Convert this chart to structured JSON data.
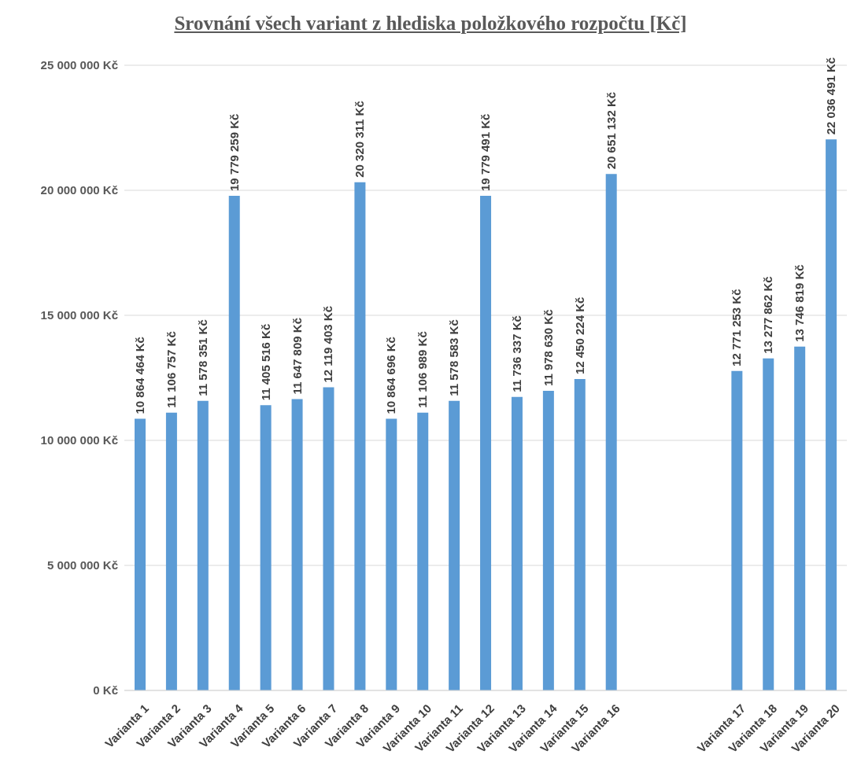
{
  "chart_data": {
    "type": "bar",
    "title": "Srovnání všech variant z hlediska položkového rozpočtu [Kč]",
    "categories": [
      "Varianta 1",
      "Varianta 2",
      "Varianta 3",
      "Varianta 4",
      "Varianta 5",
      "Varianta 6",
      "Varianta 7",
      "Varianta 8",
      "Varianta 9",
      "Varianta 10",
      "Varianta 11",
      "Varianta 12",
      "Varianta 13",
      "Varianta 14",
      "Varianta 15",
      "Varianta 16",
      null,
      null,
      null,
      "Varianta 17",
      "Varianta 18",
      "Varianta 19",
      "Varianta 20"
    ],
    "values": [
      10864464,
      11106757,
      11578351,
      19779259,
      11405516,
      11647809,
      12119403,
      20320311,
      10864696,
      11106989,
      11578583,
      19779491,
      11736337,
      11978630,
      12450224,
      20651132,
      null,
      null,
      null,
      12771253,
      13277862,
      13746819,
      22036491
    ],
    "value_labels": [
      "10 864 464 Kč",
      "11 106 757 Kč",
      "11 578 351 Kč",
      "19 779 259 Kč",
      "11 405 516 Kč",
      "11 647 809 Kč",
      "12 119 403 Kč",
      "20 320 311 Kč",
      "10 864 696 Kč",
      "11 106 989 Kč",
      "11 578 583 Kč",
      "19 779 491 Kč",
      "11 736 337 Kč",
      "11 978 630 Kč",
      "12 450 224 Kč",
      "20 651 132 Kč",
      null,
      null,
      null,
      "12 771 253 Kč",
      "13 277 862 Kč",
      "13 746 819 Kč",
      "22 036 491 Kč"
    ],
    "color": "#5b9bd5",
    "ylim": [
      0,
      25000000
    ],
    "yticks": [
      {
        "value": 0,
        "label": "0 Kč"
      },
      {
        "value": 5000000,
        "label": "5 000 000 Kč"
      },
      {
        "value": 10000000,
        "label": "10 000 000 Kč"
      },
      {
        "value": 15000000,
        "label": "15 000 000 Kč"
      },
      {
        "value": 20000000,
        "label": "20 000 000 Kč"
      },
      {
        "value": 25000000,
        "label": "25 000 000 Kč"
      }
    ],
    "grid": "y",
    "legend": false
  }
}
